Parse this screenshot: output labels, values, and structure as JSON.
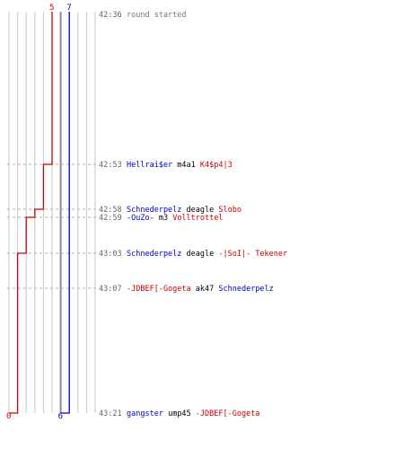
{
  "team_colors": {
    "blue": "#0000cc",
    "red": "#cc0000",
    "gray": "#777777"
  },
  "chart_data": {
    "type": "line",
    "series": [
      {
        "team": "blue",
        "values": [
          7,
          7,
          7,
          7,
          7,
          7,
          6
        ],
        "start_label": "7",
        "end_label": "6"
      },
      {
        "team": "red",
        "values": [
          5,
          4,
          3,
          2,
          1,
          1,
          0
        ],
        "start_label": "5",
        "end_label": "0"
      }
    ],
    "ylim": [
      0,
      10
    ]
  },
  "log": [
    {
      "time": "42:36",
      "parts": [
        {
          "t": "round started",
          "c": "gray"
        }
      ]
    },
    {
      "time": "42:53",
      "parts": [
        {
          "t": "Hellrai$er",
          "c": "blue"
        },
        {
          "t": " m4a1 ",
          "c": "black"
        },
        {
          "t": "K4$p4|3",
          "c": "red"
        }
      ]
    },
    {
      "time": "42:58",
      "parts": [
        {
          "t": "Schnederpelz",
          "c": "blue"
        },
        {
          "t": " deagle ",
          "c": "black"
        },
        {
          "t": "Slobo",
          "c": "red"
        }
      ]
    },
    {
      "time": "42:59",
      "parts": [
        {
          "t": "-OuZo-",
          "c": "blue"
        },
        {
          "t": " m3 ",
          "c": "black"
        },
        {
          "t": "Volltrottel",
          "c": "red"
        }
      ]
    },
    {
      "time": "43:03",
      "parts": [
        {
          "t": "Schnederpelz",
          "c": "blue"
        },
        {
          "t": " deagle ",
          "c": "black"
        },
        {
          "t": "-|SoI|- Tekener",
          "c": "red"
        }
      ]
    },
    {
      "time": "43:07",
      "parts": [
        {
          "t": "-JDBEF[-Gogeta",
          "c": "red"
        },
        {
          "t": " ak47 ",
          "c": "black"
        },
        {
          "t": "Schnederpelz",
          "c": "blue"
        }
      ]
    },
    {
      "time": "43:21",
      "parts": [
        {
          "t": "gangster",
          "c": "blue"
        },
        {
          "t": " ump45 ",
          "c": "black"
        },
        {
          "t": "-JDBEF[-Gogeta",
          "c": "red"
        }
      ]
    }
  ]
}
